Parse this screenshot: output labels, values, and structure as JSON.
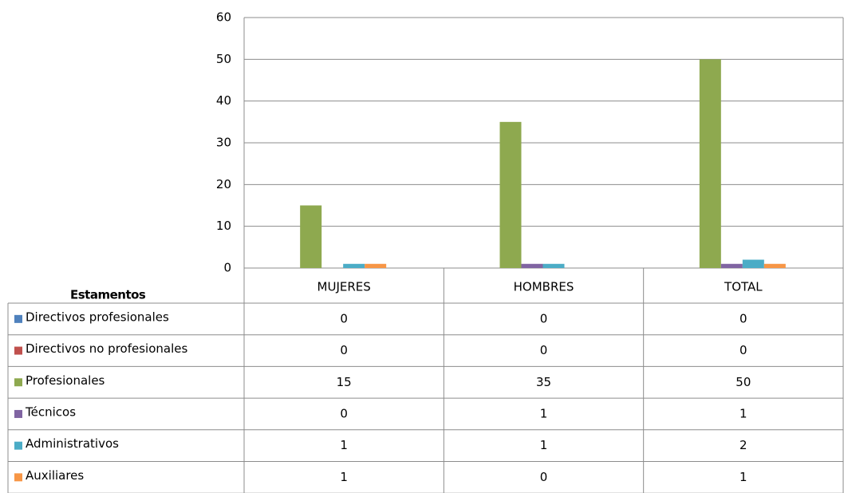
{
  "chart_data": {
    "type": "bar",
    "legend_title": "Estamentos",
    "categories": [
      "MUJERES",
      "HOMBRES",
      "TOTAL"
    ],
    "series": [
      {
        "name": "Directivos profesionales",
        "color": "#4f81bd",
        "values": [
          0,
          0,
          0
        ]
      },
      {
        "name": "Directivos no profesionales",
        "color": "#c0504d",
        "values": [
          0,
          0,
          0
        ]
      },
      {
        "name": "Profesionales",
        "color": "#8ea94f",
        "values": [
          15,
          35,
          50
        ]
      },
      {
        "name": "Técnicos",
        "color": "#8064a2",
        "values": [
          0,
          1,
          1
        ]
      },
      {
        "name": "Administrativos",
        "color": "#4bacc6",
        "values": [
          1,
          1,
          2
        ]
      },
      {
        "name": "Auxiliares",
        "color": "#f79646",
        "values": [
          1,
          0,
          1
        ]
      }
    ],
    "ylim": [
      0,
      60
    ],
    "yticks": [
      0,
      10,
      20,
      30,
      40,
      50,
      60
    ],
    "grid": true
  }
}
